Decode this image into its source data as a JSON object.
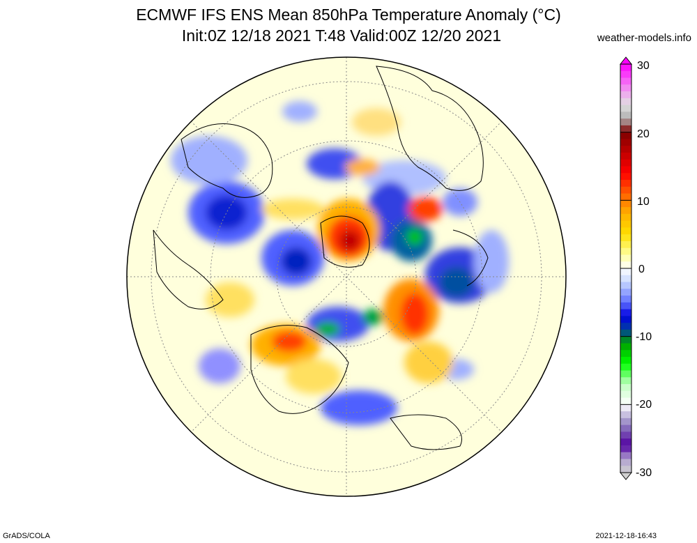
{
  "header": {
    "title_line1": "ECMWF IFS ENS Mean 850hPa Temperature Anomaly (°C)",
    "title_line2": "Init:0Z 12/18 2021  T:48 Valid:00Z 12/20 2021",
    "site": "weather-models.info"
  },
  "colorbar": {
    "labels": [
      "30",
      "20",
      "10",
      "0",
      "-10",
      "-20",
      "-30"
    ],
    "min": -30,
    "max": 30,
    "stops": [
      {
        "v": 30,
        "c": "#ff00ff"
      },
      {
        "v": 26,
        "c": "#f0a0f0"
      },
      {
        "v": 24,
        "c": "#e0e0e0"
      },
      {
        "v": 22,
        "c": "#b0b0b0"
      },
      {
        "v": 20,
        "c": "#800000"
      },
      {
        "v": 17,
        "c": "#c00000"
      },
      {
        "v": 14,
        "c": "#ff0000"
      },
      {
        "v": 11,
        "c": "#ff6000"
      },
      {
        "v": 8,
        "c": "#ffb000"
      },
      {
        "v": 5,
        "c": "#ffe000"
      },
      {
        "v": 2,
        "c": "#ffffa0"
      },
      {
        "v": 0,
        "c": "#ffffff"
      },
      {
        "v": -2,
        "c": "#c8d8ff"
      },
      {
        "v": -5,
        "c": "#6070ff"
      },
      {
        "v": -7,
        "c": "#0000e0"
      },
      {
        "v": -9,
        "c": "#0040a0"
      },
      {
        "v": -11,
        "c": "#00a000"
      },
      {
        "v": -14,
        "c": "#00ff00"
      },
      {
        "v": -17,
        "c": "#c0ffc0"
      },
      {
        "v": -20,
        "c": "#ffffff"
      },
      {
        "v": -23,
        "c": "#9080c0"
      },
      {
        "v": -26,
        "c": "#5000a0"
      },
      {
        "v": -28,
        "c": "#b0a0d0"
      },
      {
        "v": -30,
        "c": "#d0d0d0"
      }
    ]
  },
  "colors": {
    "land_bg": "#ffffdc",
    "coast": "#000000",
    "grid": "#888888"
  },
  "footer": {
    "left": "GrADS/COLA",
    "right": "2021-12-18-16:43"
  }
}
